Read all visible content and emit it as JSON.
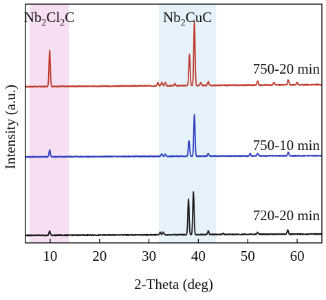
{
  "chart_data": {
    "type": "line",
    "title": "",
    "xlabel": "2-Theta (deg)",
    "ylabel": "Intensity (a.u.)",
    "xlim": [
      5,
      65
    ],
    "x_ticks": [
      10,
      20,
      30,
      40,
      50,
      60
    ],
    "y_ticks_shown": false,
    "grid": false,
    "legend": "none",
    "highlight_regions": [
      {
        "label": "Nb2Cl2C",
        "label_main": "Nb",
        "label_parts": [
          {
            "t": "Nb",
            "sub": false
          },
          {
            "t": "2",
            "sub": true
          },
          {
            "t": "Cl",
            "sub": false
          },
          {
            "t": "2",
            "sub": true
          },
          {
            "t": "C",
            "sub": false
          }
        ],
        "x_range": [
          5.8,
          13.8
        ],
        "color": "#f6dff3"
      },
      {
        "label": "Nb2CuC",
        "label_parts": [
          {
            "t": "Nb",
            "sub": false
          },
          {
            "t": "2",
            "sub": true
          },
          {
            "t": "CuC",
            "sub": false
          }
        ],
        "x_range": [
          32,
          43.6
        ],
        "color": "#e6f2fa"
      }
    ],
    "series": [
      {
        "name": "750-20 min",
        "color": "#c0392b",
        "peaks": [
          {
            "x": 9.9,
            "height": 0.56
          },
          {
            "x": 31.8,
            "height": 0.05
          },
          {
            "x": 32.6,
            "height": 0.05
          },
          {
            "x": 33.3,
            "height": 0.05
          },
          {
            "x": 35.2,
            "height": 0.03
          },
          {
            "x": 38.2,
            "height": 0.48
          },
          {
            "x": 39.2,
            "height": 0.98
          },
          {
            "x": 40.5,
            "height": 0.05
          },
          {
            "x": 42.0,
            "height": 0.06
          },
          {
            "x": 52.0,
            "height": 0.06
          },
          {
            "x": 55.3,
            "height": 0.04
          },
          {
            "x": 58.2,
            "height": 0.08
          },
          {
            "x": 60.0,
            "height": 0.04
          }
        ]
      },
      {
        "name": "750-10 min",
        "color": "#2f3fbf",
        "peaks": [
          {
            "x": 9.9,
            "height": 0.12
          },
          {
            "x": 32.6,
            "height": 0.04
          },
          {
            "x": 33.3,
            "height": 0.04
          },
          {
            "x": 38.1,
            "height": 0.28
          },
          {
            "x": 39.2,
            "height": 0.74
          },
          {
            "x": 42.0,
            "height": 0.05
          },
          {
            "x": 50.5,
            "height": 0.04
          },
          {
            "x": 52.0,
            "height": 0.05
          },
          {
            "x": 58.2,
            "height": 0.06
          }
        ]
      },
      {
        "name": "720-20 min",
        "color": "#1a1a1a",
        "peaks": [
          {
            "x": 9.9,
            "height": 0.08
          },
          {
            "x": 32.3,
            "height": 0.05
          },
          {
            "x": 32.9,
            "height": 0.05
          },
          {
            "x": 38.0,
            "height": 0.68
          },
          {
            "x": 39.0,
            "height": 0.82
          },
          {
            "x": 42.0,
            "height": 0.07
          },
          {
            "x": 45.0,
            "height": 0.02
          },
          {
            "x": 52.0,
            "height": 0.04
          },
          {
            "x": 58.1,
            "height": 0.09
          }
        ]
      }
    ]
  }
}
